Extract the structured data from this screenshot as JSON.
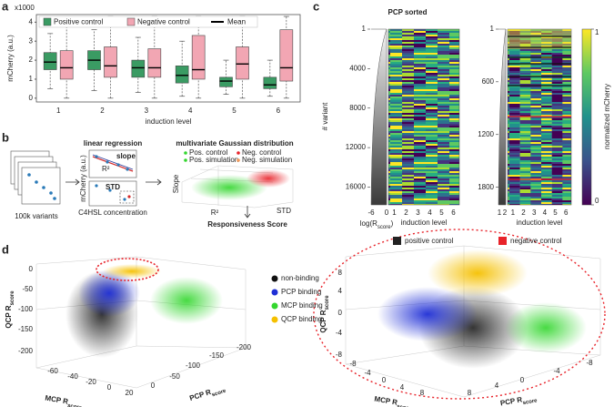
{
  "panel_labels": [
    "a",
    "b",
    "c",
    "d"
  ],
  "chart_data": {
    "type": "box",
    "multiplier": "x1000",
    "ylabel": "mCherry (a.u.)",
    "xlabel": "induction level",
    "categories": [
      "1",
      "2",
      "3",
      "4",
      "5",
      "6"
    ],
    "ylim": [
      -0.2,
      4.4
    ],
    "yticks": [
      0,
      1,
      2,
      3,
      4
    ],
    "mean_label": "Mean",
    "mean_color": "#000000",
    "series": [
      {
        "name": "Positive control",
        "color": "#3a9b63",
        "q1": [
          1.5,
          1.5,
          1.1,
          0.8,
          0.6,
          0.5
        ],
        "mean": [
          1.9,
          2.0,
          1.6,
          1.2,
          0.9,
          0.7
        ],
        "q3": [
          2.4,
          2.5,
          2.0,
          1.7,
          1.1,
          1.1
        ],
        "whislo": [
          0.5,
          0.4,
          0.3,
          0.1,
          0.2,
          0.1
        ],
        "whishi": [
          3.4,
          3.6,
          3.2,
          3.0,
          2.0,
          2.0
        ]
      },
      {
        "name": "Negative control",
        "color": "#f2a6b3",
        "q1": [
          1.0,
          1.1,
          1.1,
          1.0,
          1.0,
          0.9
        ],
        "mean": [
          1.6,
          1.7,
          1.6,
          1.5,
          1.8,
          1.6
        ],
        "q3": [
          2.5,
          2.7,
          2.6,
          3.3,
          2.7,
          3.6
        ],
        "whislo": [
          0.0,
          0.0,
          0.0,
          0.0,
          0.0,
          0.0
        ],
        "whishi": [
          4.2,
          4.3,
          4.3,
          4.3,
          4.3,
          4.3
        ]
      }
    ]
  },
  "workflow": {
    "library": "100k variants",
    "regression_title": "linear regression",
    "regression_ylabel": "mCherry (a.u.)",
    "slope": "slope",
    "r2": "R²",
    "std": "STD",
    "regression_xlabel": "C4HSL concentration",
    "gaussian_title": "multivariate Gaussian distribution",
    "legend": [
      "Pos. control",
      "Neg. control",
      "Pos. simulation",
      "Neg. simulation"
    ],
    "axis_slope": "Slope",
    "axis_r2": "R²",
    "axis_std": "STD",
    "result": "Responsiveness Score"
  },
  "heatmaps": {
    "title": "PCP sorted",
    "ylabel": "# variant",
    "full": {
      "ylim": [
        1,
        17800
      ],
      "yticks": [
        1,
        4000,
        8000,
        12000,
        16000
      ],
      "score_ticks": [
        -6,
        0
      ],
      "score_label": {
        "pre": "log(R",
        "sub": "score",
        "post": ")"
      },
      "columns": [
        1,
        2,
        3,
        4,
        5,
        6
      ],
      "xlabel": "induction level"
    },
    "zoom": {
      "ylim": [
        1,
        2000
      ],
      "yticks": [
        1,
        600,
        1200,
        1800
      ],
      "score_ticks": [
        1,
        2
      ],
      "columns": [
        1,
        2,
        3,
        4,
        5,
        6
      ],
      "xlabel": "induction level"
    },
    "colorbar": {
      "clim": [
        0,
        1
      ],
      "ticks": [
        1,
        0
      ],
      "label": "normalized mCherry"
    },
    "legend": [
      {
        "name": "positive control",
        "color": "#222222"
      },
      {
        "name": "negative control",
        "color": "#e8232a"
      }
    ]
  },
  "scatter3d": {
    "legend": [
      {
        "name": "non-binding",
        "color": "#111111"
      },
      {
        "name": "PCP binding",
        "color": "#1f2fd6"
      },
      {
        "name": "MCP binding",
        "color": "#33d62e"
      },
      {
        "name": "QCP binding",
        "color": "#f5c000"
      }
    ],
    "left": {
      "qcp": {
        "main": "QCP R",
        "sub": "score",
        "ticks": [
          0,
          -50,
          -100,
          -150,
          -200
        ]
      },
      "mcp": {
        "main": "MCP R",
        "sub": "score",
        "ticks": [
          -60,
          -40,
          -20,
          0,
          20
        ]
      },
      "pcp": {
        "main": "PCP R",
        "sub": "score",
        "ticks": [
          0,
          -50,
          -100,
          -150,
          -200
        ]
      }
    },
    "right": {
      "qcp": {
        "main": "QCP R",
        "sub": "score",
        "ticks": [
          8,
          4,
          0,
          -4,
          -8
        ]
      },
      "mcp": {
        "main": "MCP R",
        "sub": "score",
        "ticks": [
          -8,
          -4,
          0,
          4,
          8
        ]
      },
      "pcp": {
        "main": "PCP R",
        "sub": "score",
        "ticks": [
          8,
          4,
          0,
          -4,
          -8
        ]
      }
    }
  }
}
